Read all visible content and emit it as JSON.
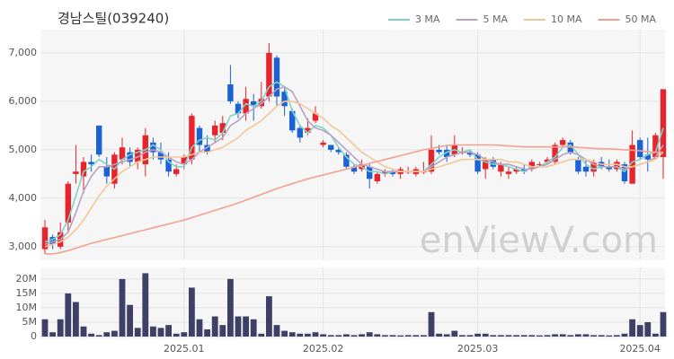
{
  "chart_data": [
    {
      "type": "candlestick",
      "title": "경남스틸(039240)",
      "watermark": "enViewV.com",
      "open": [
        2950,
        3200,
        3000,
        3500,
        4500,
        4450,
        4750,
        5500,
        4650,
        4300,
        4800,
        4950,
        4750,
        4700,
        5150,
        4950,
        4800,
        4500,
        4700,
        4800,
        5450,
        5100,
        5300,
        5350,
        6350,
        5950,
        5750,
        6000,
        5900,
        6100,
        6900,
        6200,
        5800,
        5450,
        5350,
        5600,
        5100,
        5100,
        5000,
        4900,
        4650,
        4600,
        4650,
        4350,
        4500,
        4550,
        4500,
        4550,
        4500,
        4550,
        4550,
        5000,
        5000,
        4900,
        4950,
        4950,
        4900,
        4600,
        4800,
        4550,
        4500,
        4550,
        4600,
        4600,
        4700,
        4750,
        4750,
        5100,
        5150,
        4800,
        4650,
        4550,
        4750,
        4650,
        4600,
        4700,
        4300,
        5200,
        4900,
        4850,
        4850
      ],
      "high": [
        3550,
        3250,
        3500,
        4350,
        5100,
        4850,
        4900,
        5500,
        4850,
        4950,
        5250,
        5050,
        5050,
        5450,
        5250,
        5150,
        4950,
        4700,
        4900,
        5750,
        5500,
        5300,
        5600,
        5700,
        6750,
        6000,
        6300,
        6150,
        6400,
        7200,
        6950,
        6300,
        5850,
        5500,
        5650,
        5900,
        5200,
        5100,
        5050,
        4950,
        4700,
        4800,
        4700,
        4550,
        4600,
        4600,
        4650,
        4650,
        4650,
        4750,
        5300,
        5100,
        5100,
        5300,
        5050,
        5000,
        4950,
        4850,
        4850,
        4750,
        4650,
        4650,
        4700,
        4800,
        4750,
        4850,
        5150,
        5250,
        5200,
        4850,
        4800,
        4800,
        4850,
        4800,
        4800,
        4750,
        5400,
        5250,
        5250,
        5350,
        6250
      ],
      "low": [
        2850,
        2950,
        2950,
        3300,
        4300,
        4100,
        4550,
        4850,
        4300,
        4200,
        4700,
        4650,
        4600,
        4450,
        4800,
        4700,
        4450,
        4450,
        4600,
        4700,
        4950,
        4900,
        5150,
        5200,
        5950,
        5650,
        5600,
        5600,
        5850,
        6000,
        5900,
        5700,
        5350,
        5150,
        5300,
        5550,
        5050,
        4950,
        4900,
        4600,
        4500,
        4550,
        4200,
        4300,
        4450,
        4450,
        4400,
        4500,
        4450,
        4500,
        4500,
        4900,
        4750,
        4850,
        4900,
        4850,
        4500,
        4400,
        4600,
        4450,
        4400,
        4500,
        4500,
        4550,
        4650,
        4700,
        4700,
        5050,
        4900,
        4500,
        4450,
        4450,
        4600,
        4550,
        4550,
        4300,
        4300,
        4800,
        4550,
        4800,
        4400
      ],
      "close": [
        3400,
        3050,
        3300,
        4300,
        4550,
        4750,
        4700,
        4900,
        4450,
        4900,
        5050,
        4750,
        5000,
        5300,
        4950,
        4800,
        4550,
        4600,
        4850,
        5700,
        5100,
        4950,
        5500,
        5550,
        6000,
        5750,
        6050,
        5900,
        6050,
        7000,
        6100,
        5900,
        5400,
        5250,
        5450,
        5750,
        5150,
        5000,
        4950,
        4650,
        4550,
        4700,
        4400,
        4500,
        4550,
        4500,
        4600,
        4550,
        4600,
        4550,
        5000,
        4950,
        4850,
        5100,
        4950,
        4900,
        4550,
        4800,
        4650,
        4700,
        4550,
        4600,
        4550,
        4750,
        4700,
        4800,
        5100,
        5200,
        4950,
        4550,
        4550,
        4750,
        4650,
        4600,
        4750,
        4350,
        5100,
        4850,
        4800,
        5300,
        6250
      ],
      "up_color": "#e8232b",
      "down_color": "#1b62d6",
      "series": [
        {
          "name": "3 MA",
          "color": "#7fd3c6",
          "values": [
            3100,
            3150,
            3250,
            3550,
            4050,
            4550,
            4650,
            4800,
            4700,
            4600,
            4800,
            4900,
            4950,
            5000,
            5100,
            5000,
            4750,
            4650,
            4650,
            5050,
            5200,
            5250,
            5200,
            5350,
            5700,
            5750,
            5950,
            5900,
            6000,
            6300,
            6400,
            6300,
            5800,
            5500,
            5350,
            5500,
            5450,
            5300,
            5050,
            4850,
            4700,
            4650,
            4550,
            4550,
            4500,
            4550,
            4550,
            4550,
            4550,
            4550,
            4700,
            4850,
            4950,
            5000,
            4950,
            5000,
            4800,
            4750,
            4700,
            4700,
            4650,
            4600,
            4550,
            4650,
            4650,
            4750,
            4850,
            5050,
            5100,
            4900,
            4700,
            4600,
            4650,
            4650,
            4650,
            4550,
            4750,
            4800,
            4900,
            4950,
            5450
          ]
        },
        {
          "name": "5 MA",
          "color": "#b7a2c4",
          "values": [
            3050,
            3100,
            3150,
            3300,
            3700,
            4150,
            4450,
            4650,
            4650,
            4700,
            4750,
            4800,
            4850,
            4950,
            5000,
            4950,
            4850,
            4750,
            4700,
            4800,
            4950,
            5050,
            5150,
            5250,
            5500,
            5600,
            5750,
            5850,
            5950,
            6100,
            6250,
            6300,
            6200,
            5900,
            5600,
            5450,
            5400,
            5300,
            5150,
            5000,
            4850,
            4700,
            4650,
            4600,
            4550,
            4550,
            4550,
            4550,
            4550,
            4550,
            4650,
            4750,
            4850,
            4900,
            4950,
            4950,
            4900,
            4800,
            4750,
            4700,
            4700,
            4650,
            4600,
            4600,
            4650,
            4700,
            4800,
            4900,
            4950,
            4900,
            4800,
            4700,
            4650,
            4650,
            4650,
            4600,
            4650,
            4700,
            4750,
            4850,
            5100
          ]
        },
        {
          "name": "10 MA",
          "color": "#f3c697",
          "values": [
            3000,
            3050,
            3100,
            3200,
            3350,
            3550,
            3800,
            4050,
            4250,
            4400,
            4550,
            4650,
            4750,
            4800,
            4850,
            4850,
            4850,
            4850,
            4850,
            4900,
            4950,
            4950,
            5000,
            5050,
            5150,
            5250,
            5400,
            5500,
            5600,
            5750,
            5900,
            6000,
            6000,
            5950,
            5850,
            5750,
            5650,
            5500,
            5400,
            5250,
            5100,
            4950,
            4850,
            4750,
            4650,
            4600,
            4550,
            4550,
            4550,
            4550,
            4600,
            4650,
            4700,
            4750,
            4800,
            4800,
            4800,
            4800,
            4800,
            4800,
            4750,
            4750,
            4700,
            4650,
            4650,
            4650,
            4700,
            4750,
            4800,
            4800,
            4800,
            4750,
            4700,
            4700,
            4700,
            4650,
            4650,
            4700,
            4750,
            4800,
            4950
          ]
        },
        {
          "name": "50 MA",
          "color": "#f4a08e",
          "values": [
            2850,
            2850,
            2880,
            2920,
            2970,
            3020,
            3070,
            3110,
            3150,
            3190,
            3230,
            3270,
            3310,
            3350,
            3390,
            3430,
            3470,
            3510,
            3550,
            3600,
            3650,
            3700,
            3750,
            3800,
            3850,
            3900,
            3960,
            4020,
            4080,
            4140,
            4200,
            4250,
            4300,
            4350,
            4400,
            4440,
            4480,
            4520,
            4560,
            4600,
            4640,
            4680,
            4720,
            4760,
            4800,
            4840,
            4880,
            4920,
            4960,
            5000,
            5030,
            5060,
            5090,
            5100,
            5100,
            5100,
            5100,
            5100,
            5100,
            5090,
            5080,
            5070,
            5060,
            5060,
            5060,
            5060,
            5060,
            5060,
            5060,
            5050,
            5040,
            5030,
            5020,
            5020,
            5010,
            5000,
            4990,
            4980,
            4960,
            4950,
            4950
          ]
        }
      ],
      "legend": "top-right",
      "grid": true,
      "ylim": [
        2720,
        7480
      ],
      "yticks": [
        {
          "value": 3000,
          "label": "3,000"
        },
        {
          "value": 4000,
          "label": "4,000"
        },
        {
          "value": 5000,
          "label": "5,000"
        },
        {
          "value": 6000,
          "label": "6,000"
        },
        {
          "value": 7000,
          "label": "7,000"
        }
      ]
    },
    {
      "type": "bar",
      "color": "#3e4068",
      "grid": true,
      "categories": [
        null,
        null,
        null,
        null,
        null,
        null,
        null,
        null,
        null,
        null,
        null,
        null,
        null,
        null,
        null,
        null,
        null,
        null,
        "2025.01",
        null,
        null,
        null,
        null,
        null,
        null,
        null,
        null,
        null,
        null,
        null,
        null,
        null,
        null,
        null,
        null,
        null,
        "2025.02",
        null,
        null,
        null,
        null,
        null,
        null,
        null,
        null,
        null,
        null,
        null,
        null,
        null,
        null,
        null,
        null,
        null,
        null,
        null,
        "2025.03",
        null,
        null,
        null,
        null,
        null,
        null,
        null,
        null,
        null,
        null,
        null,
        null,
        null,
        null,
        null,
        null,
        null,
        null,
        null,
        null,
        "2025.04",
        null,
        null,
        null
      ],
      "values": [
        6,
        1.5,
        6,
        15,
        12,
        3.5,
        1,
        0.5,
        1.5,
        2,
        20,
        11,
        3,
        22,
        3.5,
        3,
        4,
        1,
        1.5,
        17,
        6,
        2.5,
        7,
        4,
        20,
        7,
        7,
        6,
        1,
        14,
        4,
        2,
        1.5,
        1,
        1,
        1.5,
        0.8,
        0.5,
        0.5,
        0.8,
        0.5,
        0.8,
        1.5,
        0.8,
        0.5,
        0.5,
        0.4,
        0.5,
        0.5,
        0.5,
        8.5,
        1,
        0.8,
        2,
        0.5,
        0.5,
        1,
        1,
        0.5,
        0.5,
        0.5,
        0.5,
        0.5,
        0.5,
        0.4,
        0.5,
        0.8,
        0.8,
        0.5,
        0.8,
        0.8,
        0.5,
        0.5,
        0.4,
        0.5,
        1,
        6,
        4,
        5,
        1,
        8.5
      ],
      "ylim": [
        0,
        24
      ],
      "yticks": [
        0,
        {
          "value": 5,
          "label": "5M"
        },
        {
          "value": 10,
          "label": "10M"
        },
        {
          "value": 15,
          "label": "15M"
        },
        {
          "value": 20,
          "label": "20M"
        }
      ]
    }
  ]
}
